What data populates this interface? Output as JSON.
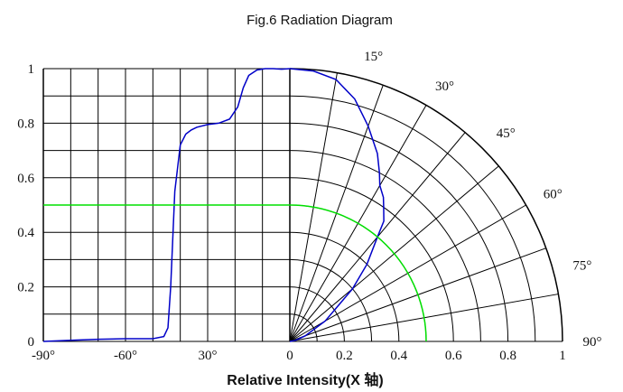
{
  "chart_data": {
    "type": "line",
    "title": "Fig.6 Radiation Diagram",
    "xlabel": "Relative Intensity(X 轴)",
    "ylabel": "",
    "y_range": [
      0,
      1
    ],
    "y_ticks": [
      "0",
      "0.2",
      "0.4",
      "0.6",
      "0.8",
      "1"
    ],
    "left_x_range": [
      -90,
      0
    ],
    "left_x_ticks": [
      "-90°",
      "-60°",
      "30°",
      "0"
    ],
    "right_x_ticks": [
      "0.2",
      "0.4",
      "0.6",
      "0.8",
      "1"
    ],
    "polar_angle_ticks": [
      "15°",
      "30°",
      "45°",
      "60°",
      "75°",
      "90°"
    ],
    "grid": true,
    "colors": {
      "axes": "#000000",
      "series": "#0000c8",
      "reference": "#00e000"
    },
    "series": [
      {
        "x": [
          -90,
          -80,
          -70,
          -60,
          -55,
          -50,
          -46,
          -44.5,
          -43.5,
          -42,
          -40,
          -38,
          -36,
          -34,
          -30,
          -26,
          -22,
          -19,
          -17,
          -15,
          -12,
          -9,
          -6,
          -3,
          0
        ],
        "y": [
          0,
          0.004,
          0.008,
          0.01,
          0.01,
          0.01,
          0.018,
          0.05,
          0.2,
          0.55,
          0.72,
          0.76,
          0.775,
          0.785,
          0.795,
          0.8,
          0.815,
          0.86,
          0.93,
          0.975,
          0.995,
          1.0,
          1.0,
          0.998,
          1.0
        ]
      },
      {
        "angle_deg": [
          0,
          5,
          10,
          15,
          20,
          25,
          28,
          30,
          33,
          35,
          38,
          40,
          45,
          50,
          60,
          70,
          80,
          90
        ],
        "r": [
          1.0,
          0.995,
          0.975,
          0.92,
          0.84,
          0.76,
          0.7,
          0.66,
          0.63,
          0.6,
          0.56,
          0.5,
          0.4,
          0.3,
          0.15,
          0.06,
          0.02,
          0.0
        ]
      },
      {
        "x": [
          -90,
          0
        ],
        "y": [
          0.5,
          0.5
        ],
        "angle_deg": [
          0,
          90
        ],
        "r": [
          0.5,
          0.5
        ]
      }
    ]
  }
}
